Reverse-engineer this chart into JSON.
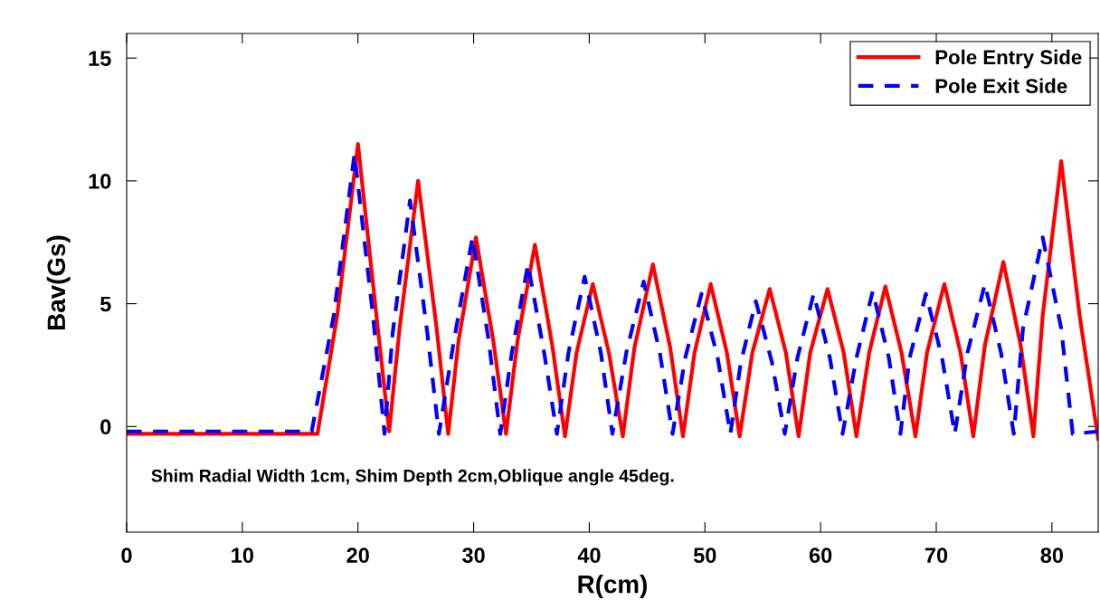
{
  "chart_data": {
    "type": "line",
    "xlabel": "R(cm)",
    "ylabel": "Bav(Gs)",
    "xlim": [
      0,
      84
    ],
    "xticks": [
      0,
      10,
      20,
      30,
      40,
      50,
      60,
      70,
      80
    ],
    "ylim": [
      -4.3,
      16
    ],
    "yticks": [
      0,
      5,
      10,
      15
    ],
    "grid": false,
    "legend": "top right",
    "marker": "none",
    "annotations": [
      "Shim Radial Width 1cm, Shim Depth 2cm,Oblique angle 45deg."
    ],
    "series": [
      {
        "name": "Pole Entry Side",
        "color": "#ff0000",
        "line_style": "solid",
        "x": [
          0,
          16.5,
          18.2,
          20,
          21.6,
          22.7,
          23.6,
          25.2,
          26.8,
          27.8,
          28.7,
          30.2,
          31.7,
          32.8,
          33.8,
          35.3,
          36.8,
          37.9,
          38.9,
          40.3,
          41.7,
          42.9,
          43.9,
          45.5,
          47,
          48.1,
          49.1,
          50.5,
          51.9,
          53,
          54.1,
          55.6,
          57,
          58.1,
          59.1,
          60.6,
          62,
          63.1,
          64.2,
          65.6,
          67,
          68.2,
          69.2,
          70.7,
          72.1,
          73.2,
          74.2,
          75.8,
          77.3,
          78.4,
          79.2,
          80.8,
          82.4,
          84
        ],
        "values": [
          -0.3,
          -0.3,
          4.5,
          11.5,
          4.5,
          -0.2,
          4,
          10,
          4,
          -0.3,
          3.5,
          7.7,
          3.5,
          -0.3,
          3.5,
          7.4,
          3.3,
          -0.4,
          3,
          5.8,
          3,
          -0.4,
          3.2,
          6.6,
          3.2,
          -0.4,
          3,
          5.8,
          3,
          -0.4,
          3,
          5.6,
          3,
          -0.4,
          3,
          5.6,
          3,
          -0.4,
          3,
          5.7,
          3,
          -0.4,
          3,
          5.8,
          3,
          -0.4,
          3.3,
          6.7,
          3.3,
          -0.4,
          4.5,
          10.8,
          4.5,
          -0.5
        ]
      },
      {
        "name": "Pole Exit Side",
        "color": "#0000ff",
        "line_style": "dashed",
        "x": [
          0,
          16,
          17.9,
          19.7,
          21.3,
          22.3,
          23,
          24.5,
          26,
          27,
          28.3,
          29.9,
          31.3,
          32.3,
          33.3,
          34.7,
          36.1,
          37.2,
          38.2,
          39.6,
          41,
          42,
          43.2,
          44.7,
          46.1,
          47.2,
          48.3,
          49.7,
          51.1,
          52.2,
          53.1,
          54.4,
          55.8,
          56.9,
          58,
          59.4,
          60.8,
          61.9,
          63.1,
          64.5,
          65.9,
          66.9,
          67.7,
          69.1,
          70.5,
          71.6,
          72.7,
          74.2,
          75.6,
          76.7,
          77.5,
          79.2,
          80.8,
          81.8,
          84
        ],
        "values": [
          -0.2,
          -0.2,
          4.5,
          11.1,
          4.5,
          -0.3,
          3.8,
          9.2,
          3.8,
          -0.3,
          3.5,
          7.7,
          3.5,
          -0.3,
          3,
          6.6,
          3,
          -0.3,
          3,
          6.1,
          3,
          -0.3,
          3,
          5.9,
          3,
          -0.3,
          2.8,
          5.4,
          2.8,
          -0.3,
          2.6,
          5.1,
          2.6,
          -0.3,
          2.8,
          5.4,
          2.8,
          -0.3,
          2.8,
          5.5,
          2.8,
          -0.3,
          2.8,
          5.4,
          2.8,
          -0.3,
          3,
          5.8,
          3,
          -0.3,
          4,
          7.7,
          4,
          -0.3,
          -0.2
        ]
      }
    ]
  }
}
